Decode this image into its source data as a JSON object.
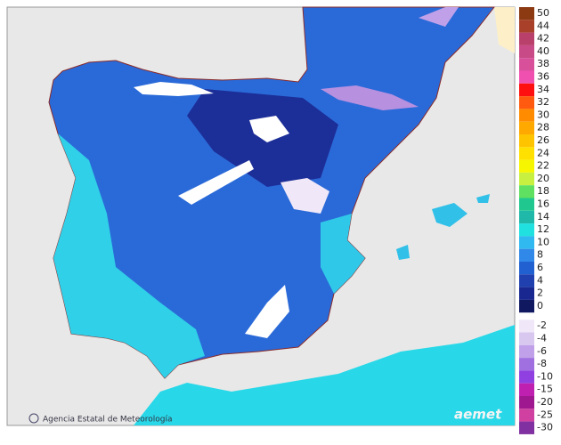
{
  "map": {
    "credit": "Agencia Estatal de Meteorología",
    "logo": "aemet",
    "legend": [
      {
        "value": 50,
        "color": "#8b3a12"
      },
      {
        "value": 44,
        "color": "#a8402a"
      },
      {
        "value": 42,
        "color": "#b8406a"
      },
      {
        "value": 40,
        "color": "#c84a86"
      },
      {
        "value": 38,
        "color": "#d8509a"
      },
      {
        "value": 36,
        "color": "#f050b0"
      },
      {
        "value": 34,
        "color": "#ff1010"
      },
      {
        "value": 32,
        "color": "#ff5a10"
      },
      {
        "value": 30,
        "color": "#ff8c00"
      },
      {
        "value": 28,
        "color": "#ffa800"
      },
      {
        "value": 26,
        "color": "#ffc400"
      },
      {
        "value": 24,
        "color": "#ffe000"
      },
      {
        "value": 22,
        "color": "#f6f600"
      },
      {
        "value": 20,
        "color": "#c8f040"
      },
      {
        "value": 18,
        "color": "#60e060"
      },
      {
        "value": 16,
        "color": "#20c890"
      },
      {
        "value": 14,
        "color": "#20b8a8"
      },
      {
        "value": 12,
        "color": "#20e0e0"
      },
      {
        "value": 10,
        "color": "#30b8f0"
      },
      {
        "value": 8,
        "color": "#3088e8"
      },
      {
        "value": 6,
        "color": "#2060d0"
      },
      {
        "value": 4,
        "color": "#2040b0"
      },
      {
        "value": 2,
        "color": "#182890"
      },
      {
        "value": 0,
        "color": "#101860"
      },
      {
        "value": -2,
        "color": "#f0e8f8"
      },
      {
        "value": -4,
        "color": "#d8c8f0"
      },
      {
        "value": -6,
        "color": "#c0a0e8"
      },
      {
        "value": -8,
        "color": "#a070e0"
      },
      {
        "value": -10,
        "color": "#9040e0"
      },
      {
        "value": -15,
        "color": "#c020b0"
      },
      {
        "value": -20,
        "color": "#a01890"
      },
      {
        "value": -25,
        "color": "#d040a0"
      },
      {
        "value": -30,
        "color": "#8030a0"
      }
    ]
  }
}
